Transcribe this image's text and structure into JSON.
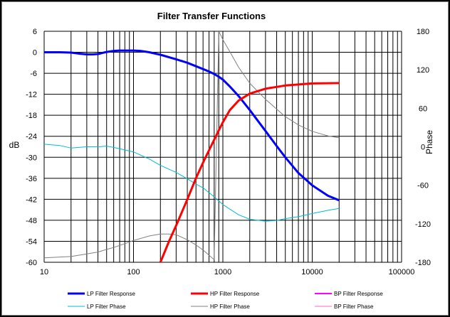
{
  "chart_data": {
    "type": "line",
    "title": "Filter Transfer Functions",
    "xlabel": "",
    "ylabel": "dB",
    "y2label": "Phase",
    "xscale": "log",
    "xlim": [
      10,
      100000
    ],
    "ylim": [
      -60,
      6
    ],
    "y2lim": [
      -180,
      180
    ],
    "x_ticks": [
      "10",
      "100",
      "1000",
      "10000",
      "100000"
    ],
    "y_ticks": [
      "6",
      "0",
      "-6",
      "-12",
      "-18",
      "-24",
      "-30",
      "-36",
      "-42",
      "-48",
      "-54",
      "-60"
    ],
    "y2_ticks": [
      "180",
      "120",
      "60",
      "0",
      "-60",
      "-120",
      "-180"
    ],
    "grid": true,
    "legend_position": "bottom",
    "series": [
      {
        "name": "LP Filter Response",
        "axis": "left",
        "color": "#0000ff",
        "width": 3,
        "x": [
          10,
          15,
          20,
          25,
          30,
          35,
          40,
          50,
          60,
          70,
          80,
          100,
          120,
          150,
          200,
          300,
          400,
          500,
          600,
          700,
          800,
          900,
          1000,
          1200,
          1500,
          2000,
          3000,
          4000,
          5000,
          7000,
          10000,
          15000,
          20000
        ],
        "y": [
          0,
          0,
          -0.1,
          -0.4,
          -0.6,
          -0.6,
          -0.5,
          0.1,
          0.4,
          0.5,
          0.5,
          0.5,
          0.4,
          0,
          -0.7,
          -2.0,
          -3.0,
          -4.0,
          -4.8,
          -5.5,
          -6.2,
          -7.0,
          -7.8,
          -9.8,
          -12.5,
          -16.5,
          -22.5,
          -26.8,
          -30,
          -34.5,
          -38,
          -41,
          -42.3
        ]
      },
      {
        "name": "HP Filter Response",
        "axis": "left",
        "color": "#ff0000",
        "width": 3,
        "x": [
          200,
          250,
          300,
          400,
          500,
          600,
          700,
          800,
          900,
          1000,
          1200,
          1500,
          2000,
          3000,
          5000,
          10000,
          20000
        ],
        "y": [
          -60,
          -54,
          -49.5,
          -42,
          -36,
          -31.5,
          -28,
          -25,
          -22.3,
          -20,
          -16.5,
          -13.8,
          -11.8,
          -10.4,
          -9.5,
          -8.9,
          -8.8
        ]
      },
      {
        "name": "BP Filter Response",
        "axis": "left",
        "color": "#ff00ff",
        "width": 2,
        "x": [],
        "y": []
      },
      {
        "name": "LP Filter Phase",
        "axis": "right",
        "color": "#00bcd4",
        "width": 1,
        "x": [
          10,
          15,
          20,
          30,
          40,
          50,
          60,
          80,
          100,
          150,
          200,
          300,
          400,
          500,
          600,
          800,
          1000,
          1500,
          2000,
          3000,
          4000,
          5000,
          7000,
          10000,
          15000,
          20000
        ],
        "y": [
          4,
          2,
          -2,
          0,
          0,
          1,
          -1,
          -5,
          -8,
          -19,
          -29,
          -40,
          -50,
          -58,
          -64,
          -78,
          -90,
          -106,
          -113,
          -116,
          -115,
          -112,
          -109,
          -104,
          -99,
          -96
        ]
      },
      {
        "name": "HP Filter Phase",
        "axis": "right",
        "color": "#808080",
        "width": 1,
        "x": [
          10,
          20,
          30,
          40,
          50,
          60,
          80,
          100,
          150,
          200,
          250,
          300,
          400,
          500,
          600,
          800,
          900,
          1000,
          1200,
          1500,
          2000,
          3000,
          5000,
          7000,
          10000,
          15000,
          20000
        ],
        "y": [
          -173,
          -171,
          -167,
          -164,
          -160,
          -157,
          -151,
          -146,
          -139,
          -136,
          -136,
          -137,
          -145,
          -153,
          -161,
          -176,
          180,
          167,
          148,
          124,
          99,
          74,
          47,
          34,
          24,
          17,
          14
        ]
      },
      {
        "name": "BP Filter Phase",
        "axis": "right",
        "color": "#ff66cc",
        "width": 1,
        "x": [],
        "y": []
      }
    ]
  }
}
